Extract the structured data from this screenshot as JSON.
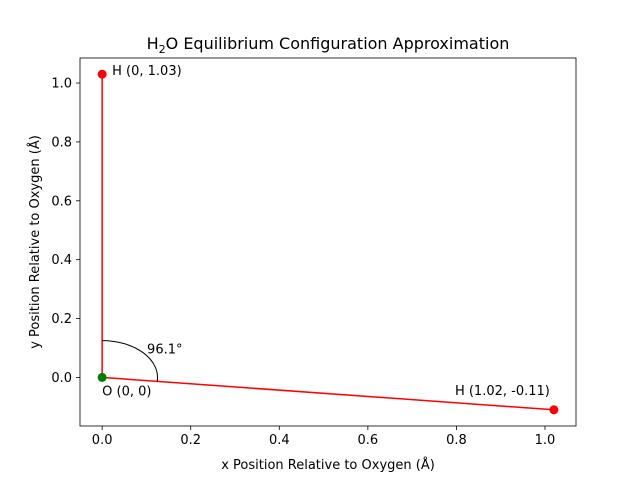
{
  "chart_data": {
    "type": "line",
    "title": {
      "prefix": "H",
      "subscript": "2",
      "suffix": "O Equilibrium Configuration Approximation"
    },
    "xlabel": "x Position Relative to Oxygen (Å)",
    "ylabel": "y Position Relative to Oxygen (Å)",
    "xlim": [
      -0.05,
      1.07
    ],
    "ylim": [
      -0.165,
      1.085
    ],
    "xticks": [
      0.0,
      0.2,
      0.4,
      0.6,
      0.8,
      1.0
    ],
    "xtick_labels": [
      "0.0",
      "0.2",
      "0.4",
      "0.6",
      "0.8",
      "1.0"
    ],
    "yticks": [
      0.0,
      0.2,
      0.4,
      0.6,
      0.8,
      1.0
    ],
    "ytick_labels": [
      "0.0",
      "0.2",
      "0.4",
      "0.6",
      "0.8",
      "1.0"
    ],
    "grid": false,
    "bonds": [
      {
        "from": [
          0,
          0
        ],
        "to": [
          0,
          1.03
        ],
        "color": "#ff0000"
      },
      {
        "from": [
          0,
          0
        ],
        "to": [
          1.02,
          -0.11
        ],
        "color": "#ff0000"
      }
    ],
    "atoms": [
      {
        "element": "O",
        "x": 0,
        "y": 0,
        "color": "#008000",
        "label": "O (0, 0)",
        "label_position": "below"
      },
      {
        "element": "H",
        "x": 0,
        "y": 1.03,
        "color": "#ff0000",
        "label": "H (0, 1.03)",
        "label_position": "right"
      },
      {
        "element": "H",
        "x": 1.02,
        "y": -0.11,
        "color": "#ff0000",
        "label": "H (1.02, -0.11)",
        "label_position": "above-left"
      }
    ],
    "angle_arc": {
      "center": [
        0,
        0
      ],
      "radius": 0.125,
      "from_deg": -6.15,
      "to_deg": 90,
      "color": "#000000",
      "label": "96.1°"
    }
  }
}
